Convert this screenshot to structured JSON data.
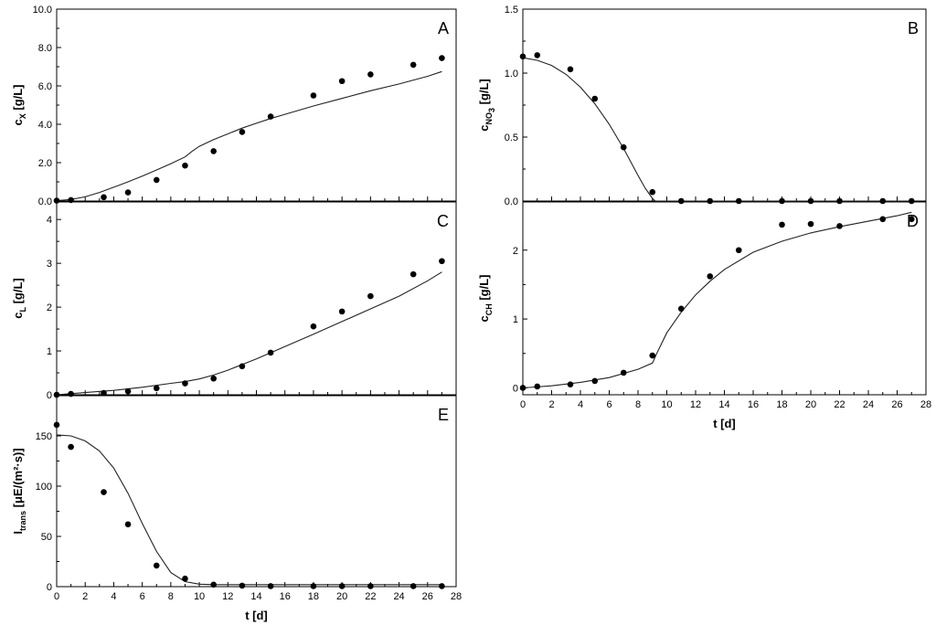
{
  "chart_data": [
    {
      "type": "scatter",
      "panel": "A",
      "ylabel": "c",
      "ylabel_sub": "X",
      "ylabel_unit": " [g/L]",
      "xlim": [
        0,
        28
      ],
      "ylim": [
        0,
        10
      ],
      "xticks": [
        0,
        2,
        4,
        6,
        8,
        10,
        12,
        14,
        16,
        18,
        20,
        22,
        24,
        26,
        28
      ],
      "yticks": [
        0,
        2,
        4,
        6,
        8,
        10
      ],
      "ytick_labels": [
        "0.0",
        "2.0",
        "4.0",
        "6.0",
        "8.0",
        "10.0"
      ],
      "show_xtick_labels": false,
      "points": {
        "x": [
          0,
          1,
          3.3,
          5,
          7,
          9,
          11,
          13,
          15,
          18,
          20,
          22,
          25,
          27
        ],
        "y": [
          0.02,
          0.05,
          0.2,
          0.45,
          1.1,
          1.85,
          2.6,
          3.6,
          4.4,
          5.5,
          6.25,
          6.6,
          7.1,
          7.45
        ]
      },
      "model": {
        "x": [
          0,
          1,
          2,
          3,
          4,
          5,
          6,
          7,
          8,
          9,
          9.5,
          10,
          11,
          12,
          13,
          14,
          15,
          16,
          18,
          20,
          22,
          24,
          26,
          27
        ],
        "y": [
          0.02,
          0.08,
          0.22,
          0.45,
          0.72,
          1.0,
          1.3,
          1.62,
          1.95,
          2.3,
          2.6,
          2.85,
          3.2,
          3.5,
          3.8,
          4.05,
          4.3,
          4.52,
          4.95,
          5.35,
          5.75,
          6.1,
          6.5,
          6.75
        ]
      }
    },
    {
      "type": "scatter",
      "panel": "B",
      "ylabel": "c",
      "ylabel_sub": "NO",
      "ylabel_subsub": "3",
      "ylabel_unit": " [g/L]",
      "xlim": [
        0,
        28
      ],
      "ylim": [
        0,
        1.5
      ],
      "xticks": [
        0,
        2,
        4,
        6,
        8,
        10,
        12,
        14,
        16,
        18,
        20,
        22,
        24,
        26,
        28
      ],
      "yticks": [
        0,
        0.5,
        1,
        1.5
      ],
      "ytick_labels": [
        "0.0",
        "0.5",
        "1.0",
        "1.5"
      ],
      "show_xtick_labels": false,
      "points": {
        "x": [
          0,
          1,
          3.3,
          5,
          7,
          9,
          11,
          13,
          15,
          18,
          20,
          22,
          25,
          27
        ],
        "y": [
          1.13,
          1.14,
          1.03,
          0.8,
          0.42,
          0.07,
          0,
          0,
          0,
          0,
          0,
          0,
          0,
          0
        ]
      },
      "model": {
        "x": [
          0,
          1,
          2,
          3,
          4,
          5,
          6,
          7,
          8,
          8.5,
          9,
          9.2,
          10,
          12,
          15,
          20,
          25,
          27
        ],
        "y": [
          1.12,
          1.1,
          1.06,
          0.99,
          0.89,
          0.76,
          0.6,
          0.41,
          0.2,
          0.1,
          0.02,
          0,
          0,
          0,
          0,
          0,
          0,
          0
        ]
      }
    },
    {
      "type": "scatter",
      "panel": "C",
      "ylabel": "c",
      "ylabel_sub": "L",
      "ylabel_unit": " [g/L]",
      "xlim": [
        0,
        28
      ],
      "ylim": [
        0,
        4.4
      ],
      "xticks": [
        0,
        2,
        4,
        6,
        8,
        10,
        12,
        14,
        16,
        18,
        20,
        22,
        24,
        26,
        28
      ],
      "yticks": [
        0,
        1,
        2,
        3,
        4
      ],
      "ytick_labels": [
        "0",
        "1",
        "2",
        "3",
        "4"
      ],
      "show_xtick_labels": false,
      "points": {
        "x": [
          0,
          1,
          3.3,
          5,
          7,
          9,
          11,
          13,
          15,
          18,
          20,
          22,
          25,
          27
        ],
        "y": [
          0,
          0.02,
          0.04,
          0.08,
          0.15,
          0.26,
          0.37,
          0.65,
          0.96,
          1.56,
          1.9,
          2.25,
          2.75,
          3.05
        ]
      },
      "model": {
        "x": [
          0,
          2,
          4,
          6,
          8,
          9,
          10,
          11,
          12,
          14,
          16,
          18,
          20,
          22,
          24,
          26,
          27
        ],
        "y": [
          0,
          0.05,
          0.1,
          0.17,
          0.26,
          0.3,
          0.36,
          0.45,
          0.56,
          0.82,
          1.1,
          1.38,
          1.67,
          1.96,
          2.25,
          2.6,
          2.8
        ]
      }
    },
    {
      "type": "scatter",
      "panel": "D",
      "ylabel": "c",
      "ylabel_sub": "CH",
      "ylabel_unit": " [g/L]",
      "xlabel": "t [d]",
      "xlim": [
        0,
        28
      ],
      "ylim": [
        -0.1,
        2.7
      ],
      "xticks": [
        0,
        2,
        4,
        6,
        8,
        10,
        12,
        14,
        16,
        18,
        20,
        22,
        24,
        26,
        28
      ],
      "yticks": [
        0,
        1,
        2
      ],
      "ytick_labels": [
        "0",
        "1",
        "2"
      ],
      "show_xtick_labels": true,
      "points": {
        "x": [
          0,
          1,
          3.3,
          5,
          7,
          9,
          11,
          13,
          15,
          18,
          20,
          22,
          25,
          27
        ],
        "y": [
          0,
          0.02,
          0.05,
          0.1,
          0.22,
          0.47,
          1.15,
          1.62,
          2.0,
          2.37,
          2.38,
          2.35,
          2.45,
          2.45
        ]
      },
      "model": {
        "x": [
          0,
          2,
          4,
          6,
          8,
          9,
          9.3,
          10,
          11,
          12,
          13,
          14,
          16,
          18,
          20,
          22,
          24,
          26,
          27
        ],
        "y": [
          0,
          0.03,
          0.08,
          0.15,
          0.27,
          0.36,
          0.5,
          0.8,
          1.1,
          1.35,
          1.55,
          1.72,
          1.97,
          2.13,
          2.25,
          2.34,
          2.42,
          2.5,
          2.55
        ]
      }
    },
    {
      "type": "scatter",
      "panel": "E",
      "ylabel": "I",
      "ylabel_sub": "trans",
      "ylabel_unit": " [μE/(m²·s)]",
      "xlabel": "t [d]",
      "xlim": [
        0,
        28
      ],
      "ylim": [
        0,
        190
      ],
      "xticks": [
        0,
        2,
        4,
        6,
        8,
        10,
        12,
        14,
        16,
        18,
        20,
        22,
        24,
        26,
        28
      ],
      "yticks": [
        0,
        50,
        100,
        150
      ],
      "ytick_labels": [
        "0",
        "50",
        "100",
        "150"
      ],
      "show_xtick_labels": true,
      "points": {
        "x": [
          0,
          1,
          3.3,
          5,
          7,
          9,
          11,
          13,
          15,
          18,
          20,
          22,
          25,
          27
        ],
        "y": [
          161,
          139,
          94,
          62,
          21,
          8,
          2,
          1,
          0.5,
          0.5,
          0.5,
          0.5,
          0.5,
          0.5
        ]
      },
      "model": {
        "x": [
          0,
          1,
          2,
          3,
          4,
          5,
          6,
          7,
          8,
          9,
          10,
          11,
          12,
          14,
          16,
          20,
          24,
          27
        ],
        "y": [
          151,
          150,
          145,
          135,
          118,
          93,
          63,
          35,
          14,
          5,
          2.5,
          2,
          2,
          2,
          2,
          2,
          2,
          2
        ]
      }
    }
  ]
}
